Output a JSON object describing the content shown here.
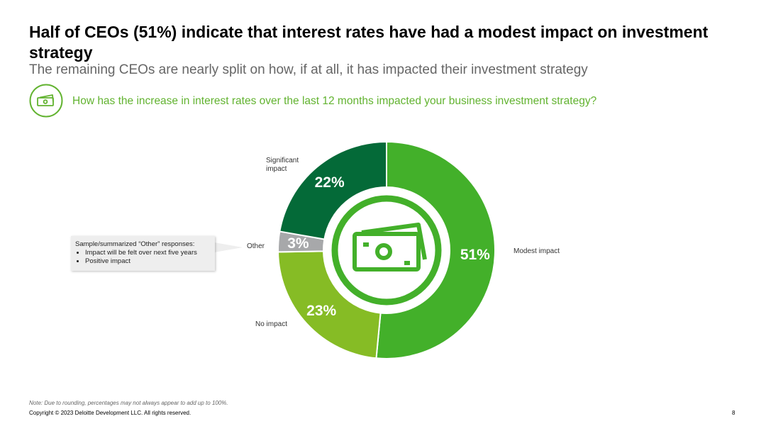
{
  "header": {
    "title": "Half of CEOs (51%) indicate that interest rates have had a modest impact on investment strategy",
    "subtitle": "The remaining CEOs are nearly split on how, if at all, it has impacted their investment strategy",
    "question": "How has the increase in interest rates over the last 12 months impacted your business investment strategy?",
    "question_icon": "money-icon"
  },
  "chart_data": {
    "type": "pie",
    "donut": true,
    "start_angle_deg": 0,
    "slices": [
      {
        "label": "Modest impact",
        "value": 51,
        "display": "51%",
        "color": "#43b02a"
      },
      {
        "label": "No impact",
        "value": 23,
        "display": "23%",
        "color": "#86bc25"
      },
      {
        "label": "Other",
        "value": 3,
        "display": "3%",
        "color": "#a7a8aa"
      },
      {
        "label": "Significant impact",
        "value": 22,
        "display": "22%",
        "color": "#046a38"
      }
    ],
    "center_icon": "money-icon",
    "center_color": "#43b02a"
  },
  "callout": {
    "title": "Sample/summarized “Other” responses:",
    "items": [
      "Impact will be felt over next five years",
      "Positive impact"
    ]
  },
  "footer": {
    "note": "Note: Due to rounding, percentages may not always appear to add up to 100%.",
    "copyright": "Copyright © 2023 Deloitte Development LLC. All rights reserved.",
    "page_number": "8"
  }
}
